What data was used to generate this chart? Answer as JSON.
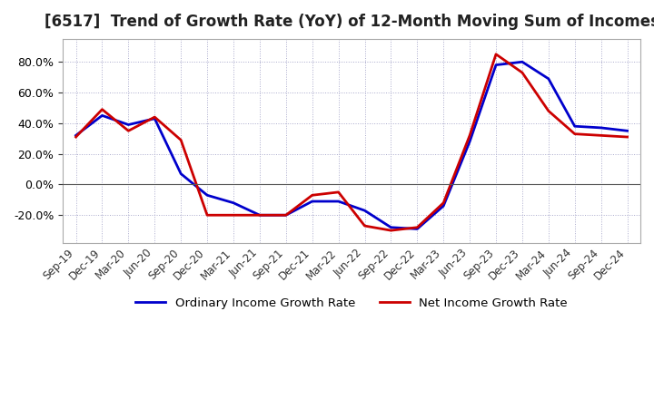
{
  "title": "[6517]  Trend of Growth Rate (YoY) of 12-Month Moving Sum of Incomes",
  "title_fontsize": 12,
  "legend_entries": [
    "Ordinary Income Growth Rate",
    "Net Income Growth Rate"
  ],
  "line_colors": [
    "#0000CC",
    "#CC0000"
  ],
  "x_labels": [
    "Sep-19",
    "Dec-19",
    "Mar-20",
    "Jun-20",
    "Sep-20",
    "Dec-20",
    "Mar-21",
    "Jun-21",
    "Sep-21",
    "Dec-21",
    "Mar-22",
    "Jun-22",
    "Sep-22",
    "Dec-22",
    "Mar-23",
    "Jun-23",
    "Sep-23",
    "Dec-23",
    "Mar-24",
    "Jun-24",
    "Sep-24",
    "Dec-24"
  ],
  "ylim": [
    -38,
    95
  ],
  "yticks": [
    -20.0,
    0.0,
    20.0,
    40.0,
    60.0,
    80.0
  ],
  "ordinary_income": [
    32,
    45,
    39,
    43,
    7,
    -7,
    -12,
    -20,
    -20,
    -11,
    -11,
    -17,
    -28,
    -29,
    -14,
    28,
    78,
    80,
    69,
    38,
    37,
    35
  ],
  "net_income": [
    31,
    49,
    35,
    44,
    29,
    -20,
    -20,
    -20,
    -20,
    -7,
    -5,
    -27,
    -30,
    -28,
    -12,
    32,
    85,
    73,
    48,
    33,
    32,
    31
  ],
  "background_color": "#ffffff",
  "grid_color": "#aaaacc",
  "line_width": 2.0
}
